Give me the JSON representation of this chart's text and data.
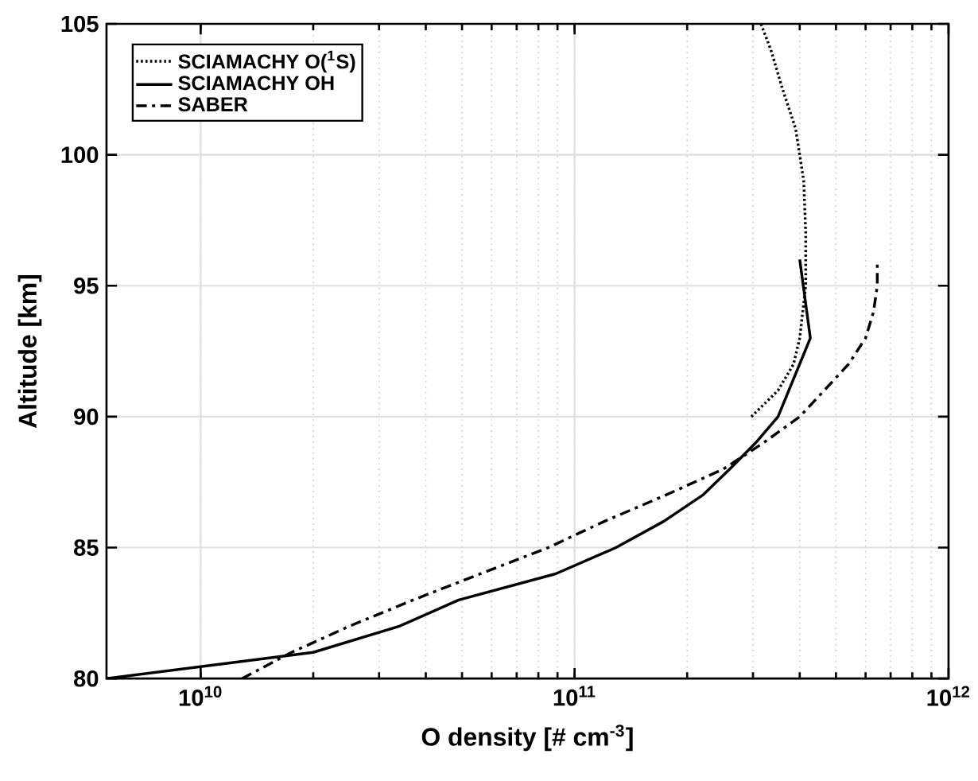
{
  "chart_data": {
    "type": "line",
    "xlabel": "O density [# cm$^{-3}$]",
    "ylabel": "Altitude [km]",
    "log": "x",
    "grid": true,
    "legend": "top left",
    "xlim": [
      5600000000.0,
      1000000000000.0
    ],
    "xticks": [
      {
        "value": 10000000000.0,
        "label": "10$^{10}$"
      },
      {
        "value": 100000000000.0,
        "label": "10$^{11}$"
      },
      {
        "value": 1000000000000.0,
        "label": "10$^{12}$"
      }
    ],
    "ylim": [
      80,
      105
    ],
    "yticks": [
      80,
      85,
      90,
      95,
      100,
      105
    ],
    "series": [
      {
        "name": "SCIAMACHY O($^{1}$S)",
        "color": "#000000",
        "line_style": "dotted",
        "x": [
          297000000000.0,
          350000000000.0,
          385000000000.0,
          400000000000.0,
          415000000000.0,
          415000000000.0,
          410000000000.0,
          390000000000.0,
          360000000000.0,
          335000000000.0,
          315000000000.0
        ],
        "values": [
          90,
          91,
          92,
          93,
          95,
          97,
          99,
          101,
          102.5,
          104,
          105
        ]
      },
      {
        "name": "SCIAMACHY OH",
        "color": "#000000",
        "line_style": "solid",
        "x": [
          5600000000.0,
          20000000000.0,
          34000000000.0,
          49000000000.0,
          89000000000.0,
          129000000000.0,
          173000000000.0,
          220000000000.0,
          260000000000.0,
          305000000000.0,
          350000000000.0,
          427000000000.0,
          400000000000.0
        ],
        "values": [
          80,
          81,
          82,
          83,
          84,
          85,
          86,
          87,
          88,
          89,
          90,
          93,
          96
        ]
      },
      {
        "name": "SABER",
        "color": "#000000",
        "line_style": "dashed",
        "x": [
          12900000000.0,
          17500000000.0,
          25000000000.0,
          37000000000.0,
          56000000000.0,
          85000000000.0,
          120000000000.0,
          175000000000.0,
          250000000000.0,
          320000000000.0,
          400000000000.0,
          465000000000.0,
          540000000000.0,
          600000000000.0,
          630000000000.0,
          645000000000.0,
          645000000000.0
        ],
        "values": [
          80,
          81,
          82,
          83,
          84,
          85,
          86,
          87,
          88,
          89,
          90,
          91,
          92,
          93,
          94,
          95,
          96
        ]
      }
    ]
  }
}
